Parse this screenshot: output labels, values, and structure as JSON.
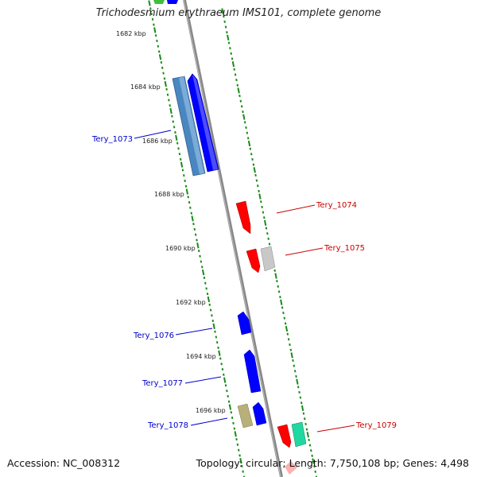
{
  "title": "Trichodesmium erythraeum IMS101, complete genome",
  "accession_text": "Accession: NC_008312",
  "summary_text": "Topology: circular; Length: 7,750,108 bp; Genes: 4,498",
  "scale_labels": [
    "1682 kbp",
    "1684 kbp",
    "1686 kbp",
    "1688 kbp",
    "1690 kbp",
    "1692 kbp",
    "1694 kbp",
    "1696 kbp"
  ],
  "gene_labels": {
    "forward": [
      "Tery_1073",
      "Tery_1076",
      "Tery_1077",
      "Tery_1078"
    ],
    "reverse": [
      "Tery_1074",
      "Tery_1075",
      "Tery_1079"
    ]
  },
  "colors": {
    "forward_label": "#0000cc",
    "reverse_label": "#cc0000",
    "tick": "#1a8a1a",
    "backbone": "#888888",
    "blue_gene": "#0000ff",
    "steel_gene": "#4a86c0",
    "red_gene": "#ff0000",
    "grey_gene": "#c8c8c8",
    "khaki_gene": "#b8b07a",
    "teal_gene": "#20d8a0",
    "green_gene": "#3cc03c",
    "pink_gene": "#ffb0b0"
  }
}
